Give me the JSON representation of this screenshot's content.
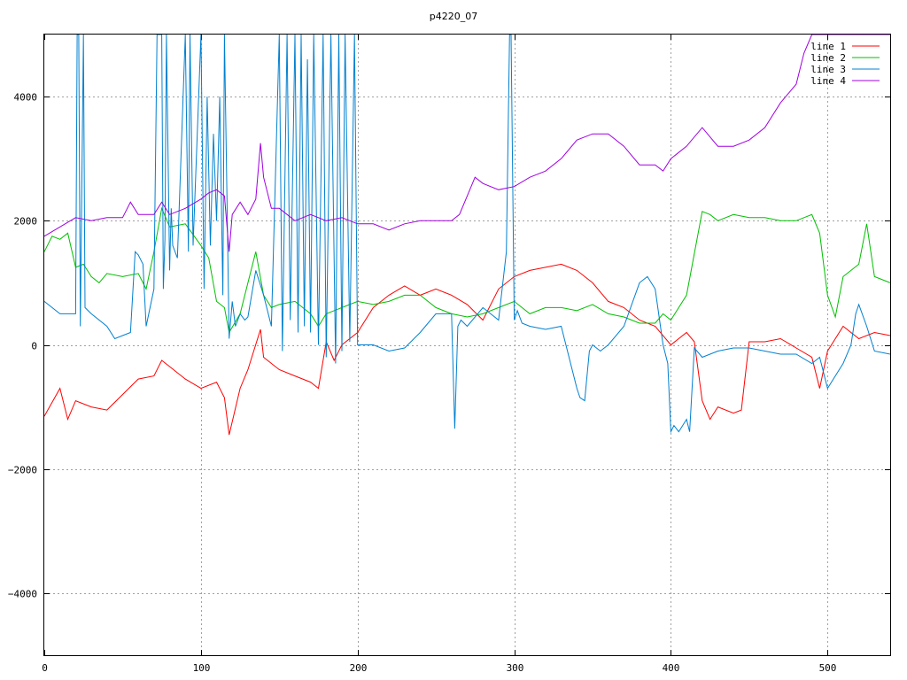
{
  "chart_data": {
    "type": "line",
    "title": "p4220_07",
    "xlabel": "",
    "ylabel": "",
    "xlim": [
      0,
      540
    ],
    "ylim": [
      -5000,
      5000
    ],
    "x_ticks": [
      0,
      100,
      200,
      300,
      400,
      500
    ],
    "y_ticks": [
      -4000,
      -2000,
      0,
      2000,
      4000
    ],
    "grid": true,
    "legend_position": "top-right",
    "series": [
      {
        "name": "line 1",
        "color": "#ff0000",
        "x": [
          0,
          10,
          15,
          20,
          30,
          40,
          50,
          60,
          70,
          75,
          80,
          90,
          100,
          110,
          115,
          118,
          125,
          130,
          138,
          140,
          150,
          160,
          170,
          175,
          180,
          185,
          190,
          200,
          210,
          220,
          230,
          240,
          250,
          260,
          270,
          280,
          290,
          300,
          310,
          320,
          330,
          340,
          350,
          360,
          370,
          380,
          390,
          400,
          410,
          415,
          420,
          425,
          430,
          440,
          445,
          450,
          460,
          470,
          480,
          490,
          495,
          500,
          510,
          520,
          530,
          540
        ],
        "y": [
          -1150,
          -700,
          -1200,
          -900,
          -1000,
          -1050,
          -800,
          -550,
          -500,
          -250,
          -350,
          -550,
          -700,
          -600,
          -850,
          -1450,
          -700,
          -400,
          250,
          -200,
          -400,
          -500,
          -600,
          -700,
          50,
          -250,
          0,
          200,
          600,
          800,
          950,
          800,
          900,
          800,
          650,
          400,
          900,
          1100,
          1200,
          1250,
          1300,
          1200,
          1000,
          700,
          600,
          400,
          300,
          0,
          200,
          50,
          -900,
          -1200,
          -1000,
          -1100,
          -1050,
          50,
          50,
          100,
          -50,
          -200,
          -700,
          -100,
          300,
          100,
          200,
          150
        ]
      },
      {
        "name": "line 2",
        "color": "#00c000",
        "x": [
          0,
          5,
          10,
          15,
          20,
          25,
          30,
          35,
          40,
          50,
          60,
          65,
          70,
          75,
          80,
          90,
          100,
          105,
          110,
          115,
          118,
          125,
          130,
          135,
          140,
          145,
          150,
          160,
          170,
          175,
          180,
          190,
          200,
          210,
          220,
          230,
          240,
          250,
          260,
          270,
          280,
          290,
          300,
          310,
          320,
          330,
          340,
          350,
          360,
          370,
          380,
          390,
          395,
          400,
          410,
          420,
          425,
          430,
          440,
          450,
          460,
          470,
          480,
          490,
          495,
          500,
          505,
          510,
          515,
          520,
          525,
          530,
          540
        ],
        "y": [
          1500,
          1750,
          1700,
          1800,
          1250,
          1300,
          1100,
          1000,
          1150,
          1100,
          1150,
          900,
          1500,
          2200,
          1900,
          1950,
          1600,
          1400,
          700,
          600,
          200,
          500,
          1000,
          1500,
          800,
          600,
          650,
          700,
          500,
          300,
          500,
          600,
          700,
          650,
          700,
          800,
          800,
          600,
          500,
          450,
          500,
          600,
          700,
          500,
          600,
          600,
          550,
          650,
          500,
          450,
          350,
          350,
          500,
          400,
          800,
          2150,
          2100,
          2000,
          2100,
          2050,
          2050,
          2000,
          2000,
          2100,
          1800,
          800,
          450,
          1100,
          1200,
          1300,
          1950,
          1100,
          1000
        ]
      },
      {
        "name": "line 3",
        "color": "#0080d0",
        "x": [
          0,
          10,
          20,
          21,
          22,
          23,
          25,
          26,
          30,
          40,
          45,
          50,
          55,
          58,
          60,
          63,
          65,
          70,
          72,
          75,
          76,
          77,
          78,
          80,
          81,
          82,
          85,
          90,
          92,
          93,
          95,
          100,
          102,
          104,
          106,
          108,
          110,
          112,
          114,
          115,
          118,
          120,
          122,
          125,
          128,
          130,
          135,
          140,
          145,
          150,
          152,
          155,
          157,
          160,
          162,
          164,
          166,
          168,
          170,
          172,
          175,
          178,
          180,
          183,
          186,
          188,
          190,
          192,
          195,
          198,
          200,
          210,
          220,
          230,
          240,
          250,
          260,
          262,
          264,
          266,
          270,
          280,
          290,
          295,
          297,
          298,
          300,
          302,
          305,
          310,
          320,
          330,
          340,
          342,
          345,
          348,
          350,
          355,
          360,
          370,
          380,
          385,
          390,
          395,
          398,
          400,
          402,
          405,
          410,
          412,
          415,
          420,
          430,
          440,
          450,
          460,
          470,
          480,
          490,
          495,
          500,
          510,
          515,
          518,
          520,
          525,
          530,
          540
        ],
        "y": [
          700,
          500,
          500,
          5000,
          5000,
          300,
          5000,
          600,
          500,
          300,
          100,
          150,
          200,
          1500,
          1450,
          1300,
          300,
          900,
          5000,
          5000,
          900,
          1700,
          5000,
          1200,
          2200,
          1600,
          1400,
          5000,
          1500,
          5000,
          1600,
          5000,
          900,
          4000,
          1600,
          3400,
          2000,
          4000,
          800,
          5000,
          100,
          700,
          300,
          500,
          400,
          450,
          1200,
          800,
          300,
          5000,
          -100,
          5000,
          400,
          5000,
          200,
          5000,
          300,
          4600,
          200,
          5000,
          0,
          5000,
          -200,
          5000,
          -300,
          5000,
          -100,
          5000,
          50,
          5000,
          0,
          0,
          -100,
          -50,
          200,
          500,
          500,
          -1350,
          300,
          400,
          300,
          600,
          400,
          1500,
          5000,
          5000,
          400,
          550,
          350,
          300,
          250,
          300,
          -700,
          -850,
          -900,
          -100,
          0,
          -100,
          0,
          300,
          1000,
          1100,
          900,
          0,
          -300,
          -1400,
          -1300,
          -1400,
          -1200,
          -1400,
          -50,
          -200,
          -100,
          -50,
          -50,
          -100,
          -150,
          -150,
          -300,
          -200,
          -700,
          -300,
          0,
          500,
          650,
          300,
          -100,
          -150
        ]
      },
      {
        "name": "line 4",
        "color": "#a000e0",
        "x": [
          0,
          10,
          20,
          30,
          40,
          50,
          55,
          60,
          70,
          75,
          80,
          90,
          100,
          105,
          110,
          115,
          118,
          120,
          125,
          130,
          135,
          138,
          140,
          145,
          150,
          160,
          170,
          180,
          190,
          200,
          210,
          220,
          230,
          240,
          250,
          260,
          265,
          270,
          275,
          280,
          290,
          300,
          310,
          320,
          330,
          340,
          350,
          360,
          370,
          380,
          390,
          395,
          400,
          410,
          420,
          430,
          440,
          450,
          460,
          470,
          480,
          485,
          490,
          500,
          510,
          520,
          530,
          540
        ],
        "y": [
          1750,
          1900,
          2050,
          2000,
          2050,
          2050,
          2300,
          2100,
          2100,
          2300,
          2100,
          2200,
          2350,
          2450,
          2500,
          2400,
          1500,
          2100,
          2300,
          2100,
          2350,
          3250,
          2700,
          2200,
          2200,
          2000,
          2100,
          2000,
          2050,
          1950,
          1950,
          1850,
          1950,
          2000,
          2000,
          2000,
          2100,
          2400,
          2700,
          2600,
          2500,
          2550,
          2700,
          2800,
          3000,
          3300,
          3400,
          3400,
          3200,
          2900,
          2900,
          2800,
          3000,
          3200,
          3500,
          3200,
          3200,
          3300,
          3500,
          3900,
          4200,
          4700,
          5000,
          5000,
          5000,
          5000,
          5000,
          5000
        ]
      }
    ]
  }
}
